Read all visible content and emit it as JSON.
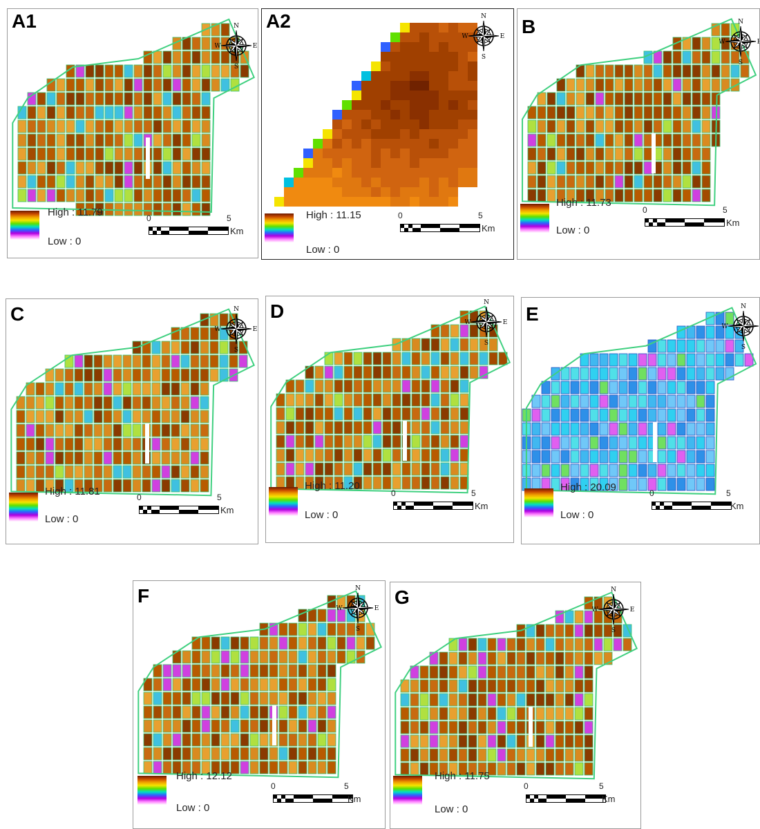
{
  "panels": [
    {
      "id": "A1",
      "label": "A1",
      "high": "High : 11.79",
      "low": "Low : 0",
      "scale_start": "0",
      "scale_end": "5",
      "scale_unit": "Km",
      "scheme": "warm"
    },
    {
      "id": "A2",
      "label": "A2",
      "high": "High : 11.15",
      "low": "Low : 0",
      "scale_start": "0",
      "scale_end": "5",
      "scale_unit": "Km",
      "scheme": "coarse"
    },
    {
      "id": "B",
      "label": "B",
      "high": "High : 11.73",
      "low": "Low : 0",
      "scale_start": "0",
      "scale_end": "5",
      "scale_unit": "Km",
      "scheme": "warm"
    },
    {
      "id": "C",
      "label": "C",
      "high": "High : 11.81",
      "low": "Low : 0",
      "scale_start": "0",
      "scale_end": "5",
      "scale_unit": "Km",
      "scheme": "warm"
    },
    {
      "id": "D",
      "label": "D",
      "high": "High : 11.20",
      "low": "Low : 0",
      "scale_start": "0",
      "scale_end": "5",
      "scale_unit": "Km",
      "scheme": "warm"
    },
    {
      "id": "E",
      "label": "E",
      "high": "High : 20.09",
      "low": "Low : 0",
      "scale_start": "0",
      "scale_end": "5",
      "scale_unit": "Km",
      "scheme": "cool"
    },
    {
      "id": "F",
      "label": "F",
      "high": "High : 12.12",
      "low": "Low : 0",
      "scale_start": "0",
      "scale_end": "5",
      "scale_unit": "Km",
      "scheme": "warm"
    },
    {
      "id": "G",
      "label": "G",
      "high": "High : 11.75",
      "low": "Low : 0",
      "scale_start": "0",
      "scale_end": "5",
      "scale_unit": "Km",
      "scheme": "warm"
    }
  ],
  "compass": {
    "n": "N",
    "s": "S",
    "e": "E",
    "w": "W"
  },
  "colors": {
    "ramp": [
      "#6b1a00",
      "#c84a00",
      "#f0a000",
      "#f5e400",
      "#60e000",
      "#00e0c0",
      "#3060ff",
      "#b000e0",
      "#ff80ff",
      "#ffffff"
    ],
    "warm_fields": [
      "#8a3a00",
      "#a34a00",
      "#b85a00",
      "#c86a10",
      "#d98a20",
      "#e8a030"
    ],
    "cool_fields": [
      "#30d0f0",
      "#40b8f0",
      "#2e90e8",
      "#50e0e8",
      "#70c8f8"
    ],
    "border_line": "#40d080"
  }
}
